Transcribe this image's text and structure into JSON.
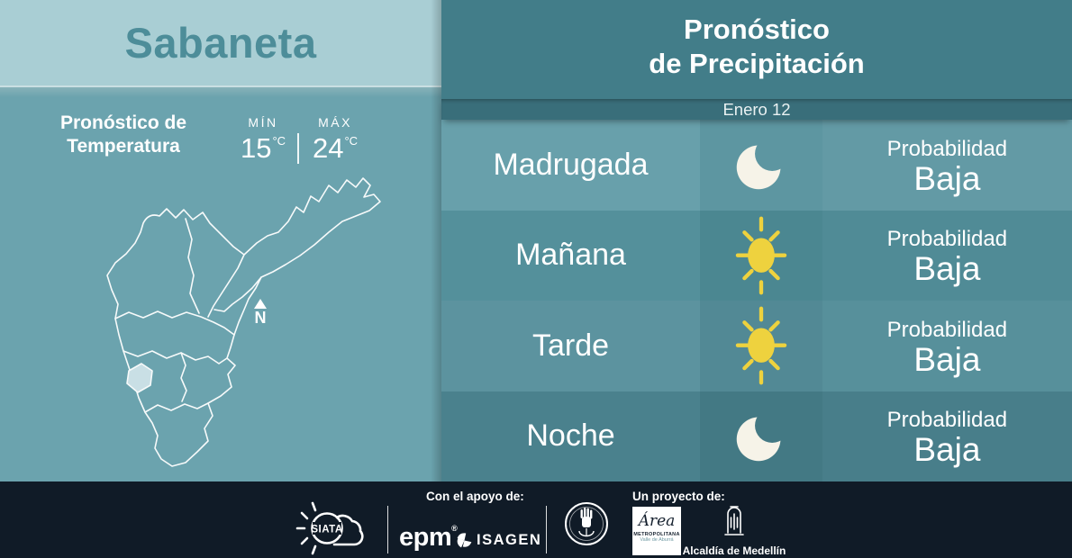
{
  "left_panel": {
    "city": "Sabaneta",
    "temperature": {
      "title_line1": "Pronóstico de",
      "title_line2": "Temperatura",
      "min_label": "MÍN",
      "min_value": "15",
      "max_label": "MÁX",
      "max_value": "24",
      "unit": "°C"
    },
    "compass_label": "N"
  },
  "right_panel": {
    "title_line1": "Pronóstico",
    "title_line2": "de Precipitación",
    "date": "Enero 12",
    "rows": [
      {
        "label": "Madrugada",
        "icon": "moon-icon",
        "probability_label": "Probabilidad",
        "probability_value": "Baja"
      },
      {
        "label": "Mañana",
        "icon": "sun-icon",
        "probability_label": "Probabilidad",
        "probability_value": "Baja"
      },
      {
        "label": "Tarde",
        "icon": "sun-icon",
        "probability_label": "Probabilidad",
        "probability_value": "Baja"
      },
      {
        "label": "Noche",
        "icon": "moon-icon",
        "probability_label": "Probabilidad",
        "probability_value": "Baja"
      }
    ]
  },
  "footer": {
    "support_label": "Con el apoyo de:",
    "project_label": "Un proyecto de:",
    "siata_label": "SIATA",
    "epm_label": "epm",
    "epm_registered": "®",
    "isagen_label": "ISAGEN",
    "area_script": "Área",
    "area_caption1": "METROPOLITANA",
    "area_caption2": "Valle de Aburrá",
    "alcaldia_caption": "Alcaldía de Medellín"
  },
  "colors": {
    "left_header_bg": "#a9ced4",
    "city_text": "#4d8d99",
    "left_panel_bg": "#6ba3ae",
    "right_header_bg": "#427d89",
    "date_band_bg": "#396e7a",
    "footer_bg": "#101b27",
    "sun": "#eed23e",
    "moon": "#f6f3e8",
    "map_outline": "#ffffff",
    "map_highlight": "#cfe3e8",
    "rows": [
      [
        "#68a0ab",
        "#5d96a1",
        "#639aa5"
      ],
      [
        "#54909b",
        "#4b8791",
        "#508b96"
      ],
      [
        "#5c939f",
        "#528995",
        "#57909b"
      ],
      [
        "#4a818d",
        "#437984",
        "#487e8a"
      ]
    ]
  }
}
